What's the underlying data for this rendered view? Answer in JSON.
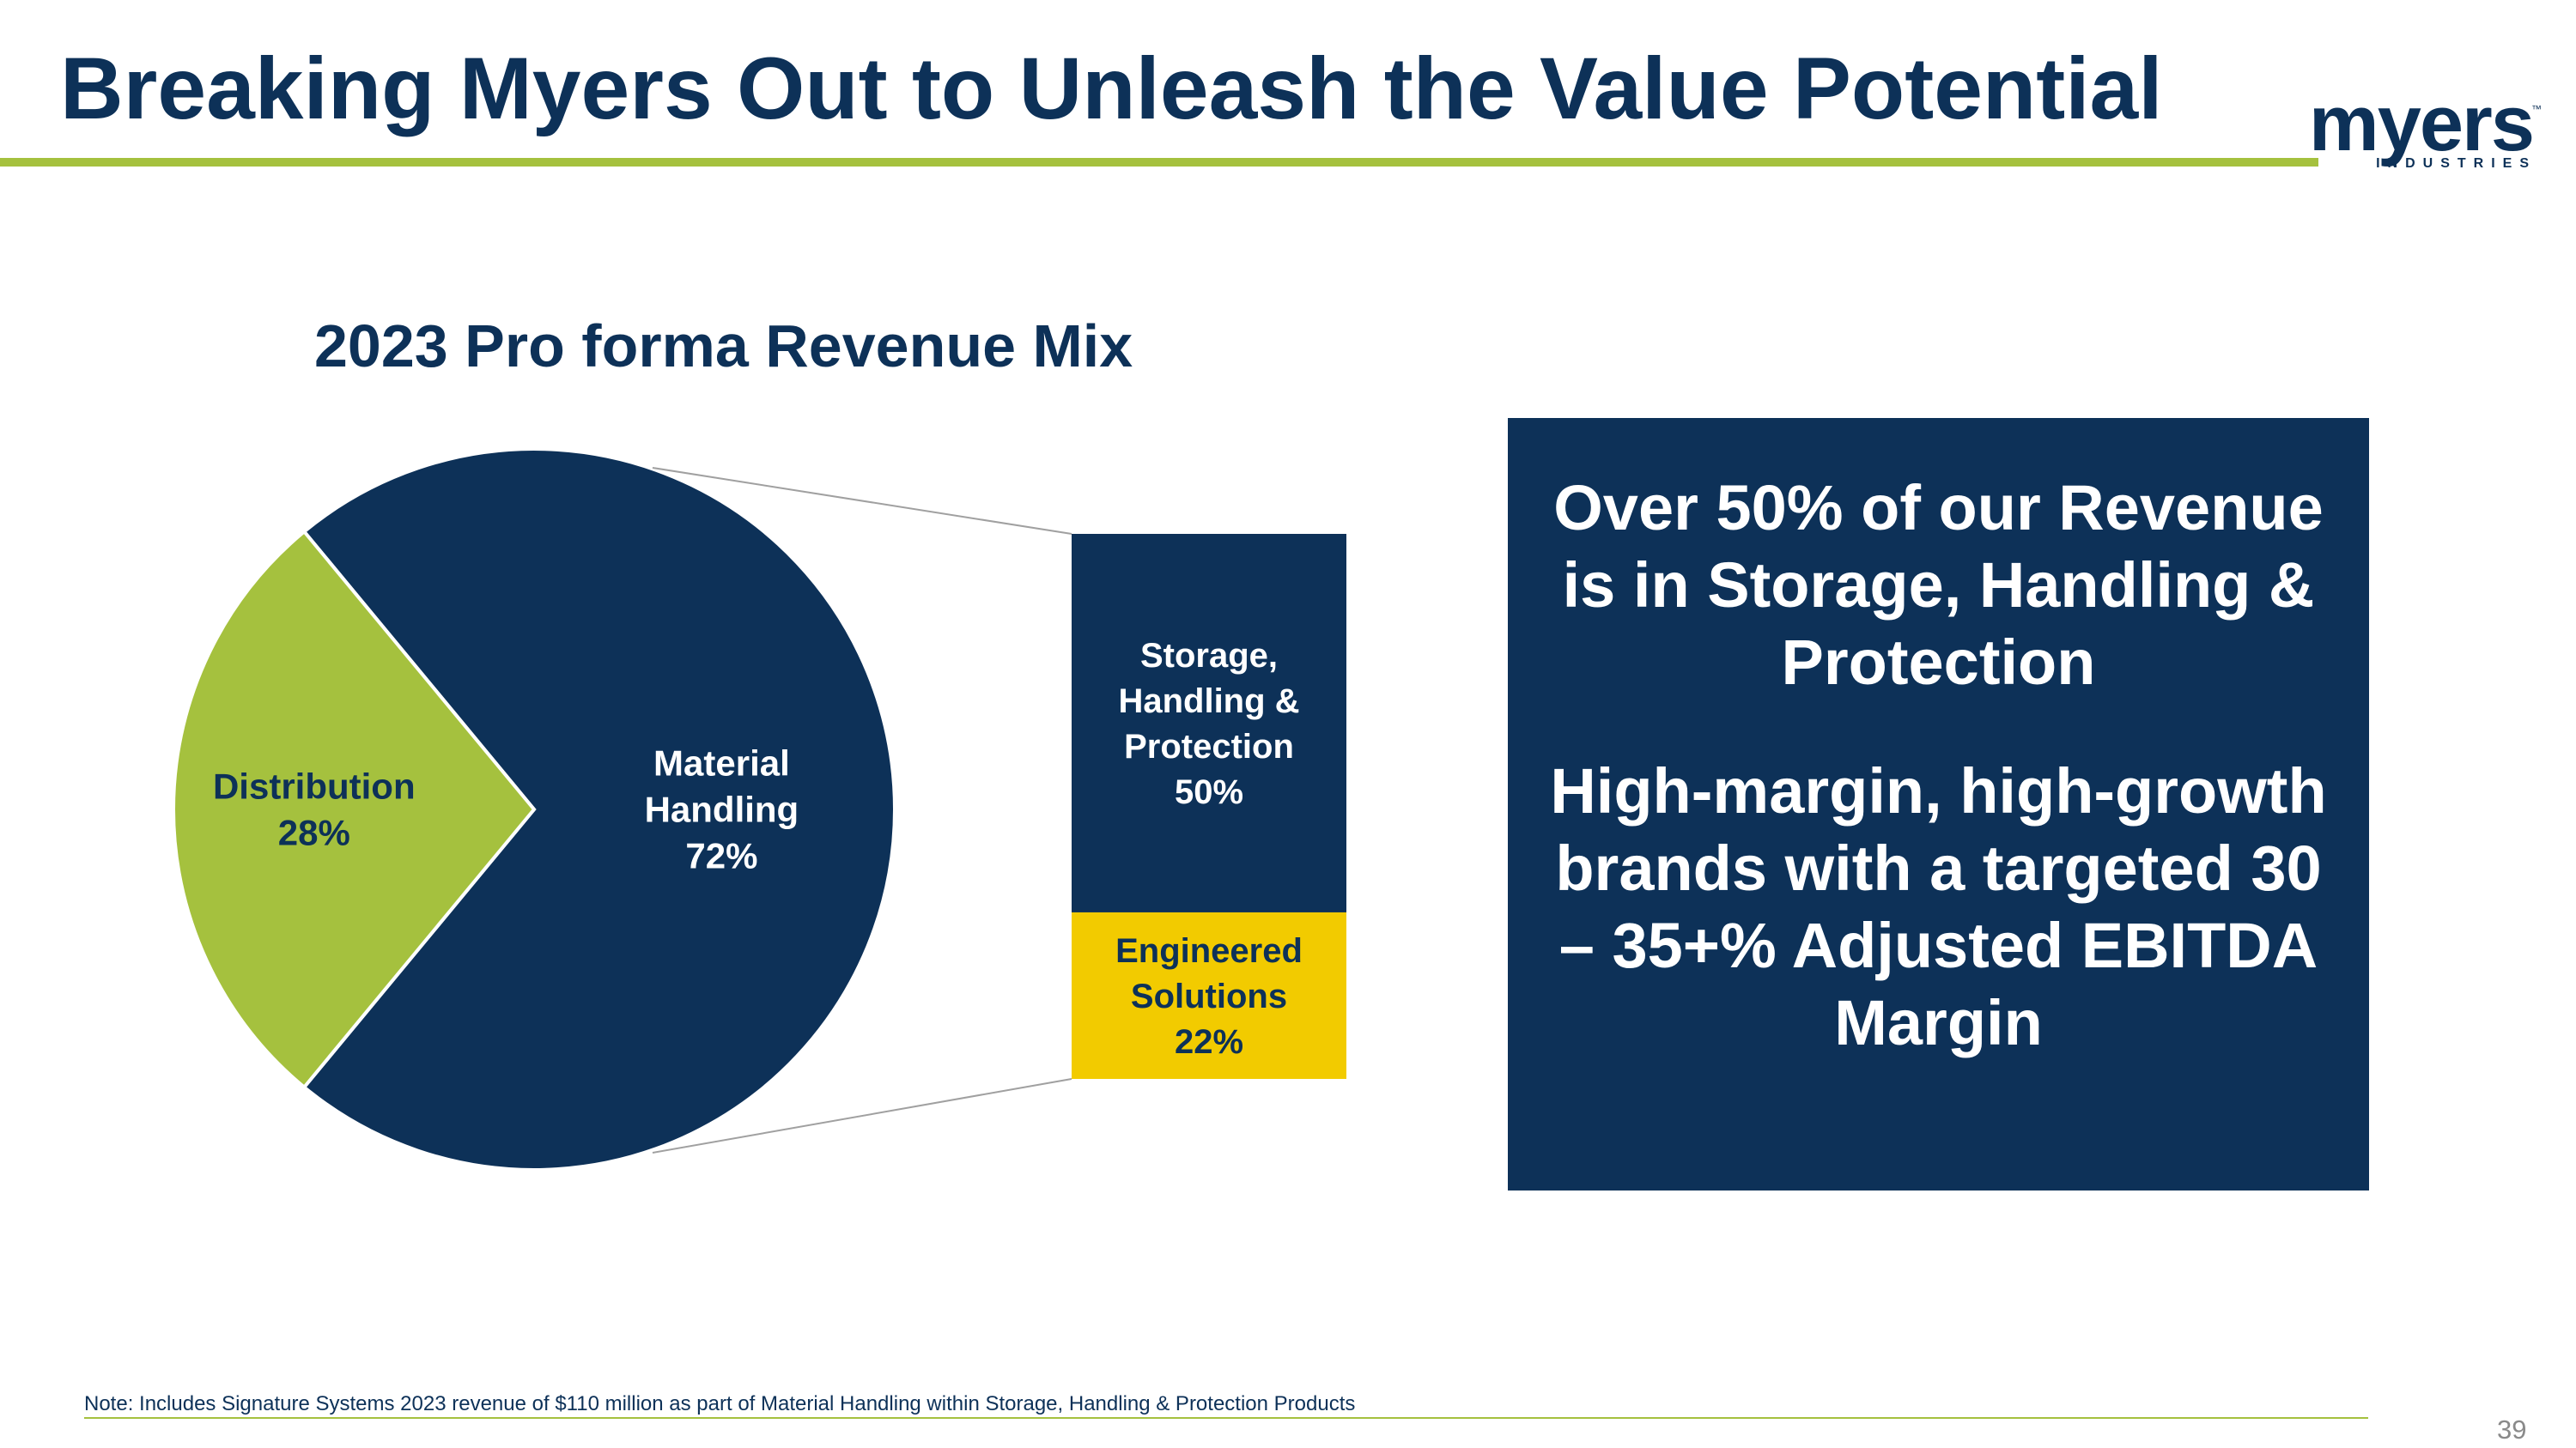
{
  "slide": {
    "title": "Breaking Myers Out to Unleash the Value Potential",
    "logo": {
      "wordmark": "myers",
      "tm": "™",
      "subtext": "INDUSTRIES"
    },
    "note": "Note: Includes Signature Systems 2023 revenue of $110 million as part of Material Handling within Storage, Handling & Protection Products",
    "page_number": "39"
  },
  "callout": {
    "text_1": "Over 50% of our Revenue is in Storage, Handling & Protection",
    "text_2": "High-margin, high-growth brands with a targeted 30 – 35+% Adjusted EBITDA Margin"
  },
  "colors": {
    "navy": "#0d3158",
    "green": "#a5c13e",
    "yellow": "#f2cb00",
    "white": "#ffffff"
  },
  "chart_data": {
    "type": "pie",
    "title": "2023 Pro forma Revenue Mix",
    "pie": {
      "slices": [
        {
          "label_lines": [
            "Material",
            "Handling",
            "72%"
          ],
          "value": 72,
          "color": "#0d3158",
          "text_color": "#ffffff"
        },
        {
          "label_lines": [
            "Distribution",
            "28%"
          ],
          "value": 28,
          "color": "#a5c13e",
          "text_color": "#0d3158"
        }
      ]
    },
    "breakdown": {
      "of_slice": "Material Handling",
      "segments": [
        {
          "label_lines": [
            "Storage,",
            "Handling &",
            "Protection",
            "50%"
          ],
          "value": 50,
          "color": "#0d3158",
          "text_color": "#ffffff"
        },
        {
          "label_lines": [
            "Engineered",
            "Solutions",
            "22%"
          ],
          "value": 22,
          "color": "#f2cb00",
          "text_color": "#0d3158"
        }
      ]
    }
  }
}
